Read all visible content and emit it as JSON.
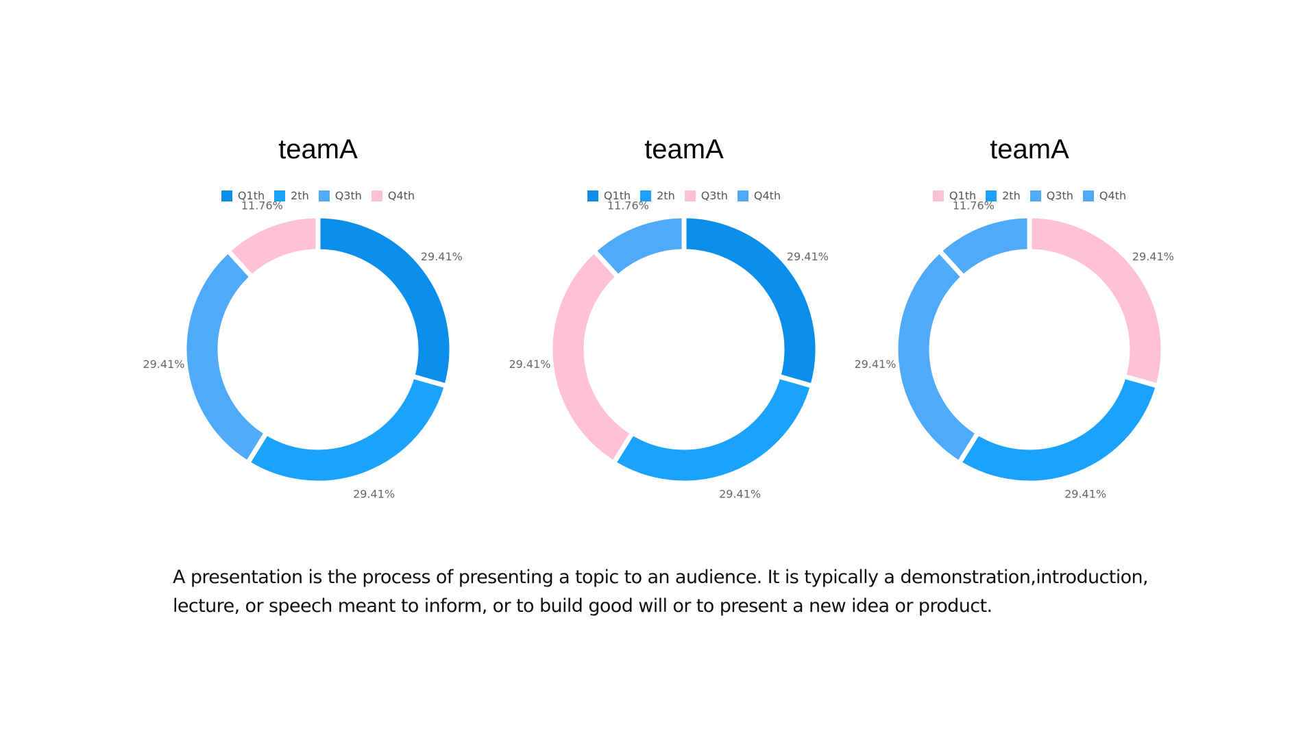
{
  "chart_data": [
    {
      "type": "pie",
      "title": "teamA",
      "categories": [
        "Q1th",
        "2th",
        "Q3th",
        "Q4th"
      ],
      "values": [
        29.41,
        29.41,
        29.41,
        11.76
      ],
      "labels": [
        "29.41%",
        "29.41%",
        "29.41%",
        "11.76%"
      ],
      "colors": [
        "#0b8eea",
        "#1ba2fc",
        "#4faafa",
        "#fec0d5"
      ],
      "donut": true,
      "legend": "top"
    },
    {
      "type": "pie",
      "title": "teamA",
      "categories": [
        "Q1th",
        "2th",
        "Q3th",
        "Q4th"
      ],
      "values": [
        29.41,
        29.41,
        29.41,
        11.76
      ],
      "labels": [
        "29.41%",
        "29.41%",
        "29.41%",
        "11.76%"
      ],
      "colors": [
        "#0b8eea",
        "#1ba2fc",
        "#fec0d5",
        "#4faafa"
      ],
      "donut": true,
      "legend": "top"
    },
    {
      "type": "pie",
      "title": "teamA",
      "categories": [
        "Q1th",
        "2th",
        "Q3th",
        "Q4th"
      ],
      "values": [
        29.41,
        29.41,
        29.41,
        11.76
      ],
      "labels": [
        "29.41%",
        "29.41%",
        "29.41%",
        "11.76%"
      ],
      "colors": [
        "#fec0d5",
        "#1ba2fc",
        "#4faafa",
        "#4faafa"
      ],
      "donut": true,
      "legend": "top"
    }
  ],
  "description": "A presentation is the process of presenting a topic to an audience. It is typically a demonstration,introduction, lecture, or speech meant to inform, or to build good will or to present a new idea or product."
}
